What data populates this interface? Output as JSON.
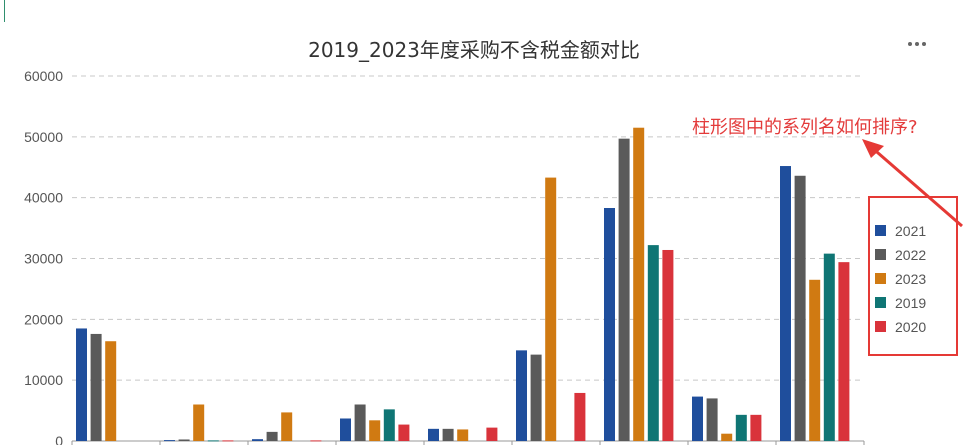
{
  "chart_data": {
    "type": "bar",
    "title": "2019_2023年度采购不含税金额对比",
    "xlabel": "",
    "ylabel": "",
    "ylim": [
      0,
      60000
    ],
    "yticks": [
      0,
      10000,
      20000,
      30000,
      40000,
      50000,
      60000
    ],
    "grid": true,
    "legend_placement": "right",
    "categories": [
      "",
      "",
      "",
      "",
      "",
      "",
      "",
      "",
      ""
    ],
    "series": [
      {
        "name": "2021",
        "color": "#1f4e9c",
        "values": [
          18500,
          150,
          300,
          3700,
          2000,
          14900,
          38300,
          7300,
          45200
        ]
      },
      {
        "name": "2022",
        "color": "#5a5a5a",
        "values": [
          17600,
          250,
          1500,
          6000,
          2000,
          14200,
          49700,
          7000,
          43600
        ]
      },
      {
        "name": "2023",
        "color": "#d07a12",
        "values": [
          16400,
          6000,
          4700,
          3400,
          1900,
          43300,
          51500,
          1200,
          26500
        ]
      },
      {
        "name": "2019",
        "color": "#0f7574",
        "values": [
          0,
          100,
          0,
          5200,
          0,
          0,
          32200,
          4300,
          30800
        ]
      },
      {
        "name": "2020",
        "color": "#d9333b",
        "values": [
          0,
          100,
          100,
          2700,
          2200,
          7900,
          31400,
          4300,
          29400
        ]
      }
    ]
  },
  "annotation": {
    "text": "柱形图中的系列名如何排序?",
    "color": "#e33b3b"
  },
  "legend": {
    "items": [
      {
        "label": "2021",
        "color": "#1f4e9c"
      },
      {
        "label": "2022",
        "color": "#5a5a5a"
      },
      {
        "label": "2023",
        "color": "#d07a12"
      },
      {
        "label": "2019",
        "color": "#0f7574"
      },
      {
        "label": "2020",
        "color": "#d9333b"
      }
    ],
    "border_color": "#e53935"
  },
  "toolbar": {
    "more_icon": "more-dots-icon"
  }
}
